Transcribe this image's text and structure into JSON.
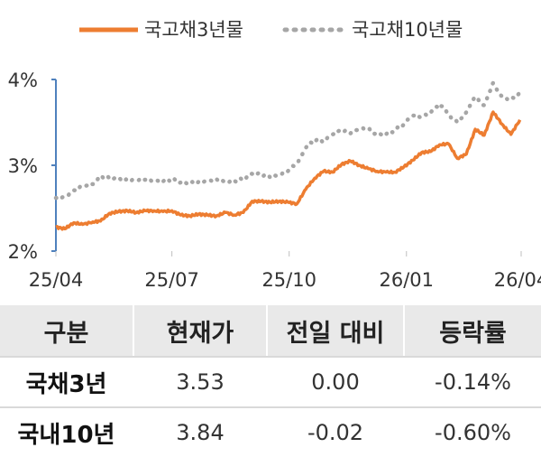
{
  "chart_data": {
    "type": "line",
    "legend_position": "top",
    "grid": false,
    "y_axis": {
      "ticks": [
        "2%",
        "3%",
        "4%"
      ],
      "ylim": [
        2.0,
        4.0
      ],
      "unit": "%"
    },
    "x_axis": {
      "ticks": [
        "25/04",
        "25/07",
        "25/10",
        "26/01",
        "26/04"
      ]
    },
    "series": [
      {
        "name": "국고채3년물",
        "color": "#ed7d31",
        "style": "solid",
        "x": [
          "2025-04-01",
          "2025-04-08",
          "2025-04-15",
          "2025-04-22",
          "2025-04-30",
          "2025-05-06",
          "2025-05-13",
          "2025-05-20",
          "2025-05-27",
          "2025-06-03",
          "2025-06-10",
          "2025-06-17",
          "2025-06-24",
          "2025-07-01",
          "2025-07-08",
          "2025-07-15",
          "2025-07-22",
          "2025-07-29",
          "2025-08-05",
          "2025-08-12",
          "2025-08-19",
          "2025-08-26",
          "2025-09-02",
          "2025-09-09",
          "2025-09-16",
          "2025-09-23",
          "2025-09-30",
          "2025-10-07",
          "2025-10-14",
          "2025-10-21",
          "2025-10-28",
          "2025-11-04",
          "2025-11-11",
          "2025-11-18",
          "2025-11-25",
          "2025-12-02",
          "2025-12-09",
          "2025-12-16",
          "2025-12-23",
          "2025-12-30",
          "2026-01-06",
          "2026-01-13",
          "2026-01-20",
          "2026-01-27",
          "2026-02-03",
          "2026-02-10",
          "2026-02-17",
          "2026-02-24",
          "2026-03-03",
          "2026-03-10",
          "2026-03-17",
          "2026-03-24",
          "2026-03-31"
        ],
        "values": [
          2.28,
          2.26,
          2.33,
          2.31,
          2.34,
          2.35,
          2.44,
          2.46,
          2.47,
          2.45,
          2.47,
          2.47,
          2.46,
          2.47,
          2.42,
          2.41,
          2.43,
          2.42,
          2.41,
          2.45,
          2.42,
          2.45,
          2.58,
          2.58,
          2.57,
          2.58,
          2.57,
          2.55,
          2.72,
          2.85,
          2.93,
          2.92,
          3.01,
          3.05,
          3.0,
          2.96,
          2.93,
          2.92,
          2.92,
          2.98,
          3.06,
          3.15,
          3.16,
          3.24,
          3.25,
          3.08,
          3.13,
          3.42,
          3.35,
          3.62,
          3.48,
          3.36,
          3.53
        ]
      },
      {
        "name": "국고채10년물",
        "color": "#a6a6a6",
        "style": "dotted",
        "x": [
          "2025-04-01",
          "2025-04-08",
          "2025-04-15",
          "2025-04-22",
          "2025-04-30",
          "2025-05-06",
          "2025-05-13",
          "2025-05-20",
          "2025-05-27",
          "2025-06-03",
          "2025-06-10",
          "2025-06-17",
          "2025-06-24",
          "2025-07-01",
          "2025-07-08",
          "2025-07-15",
          "2025-07-22",
          "2025-07-29",
          "2025-08-05",
          "2025-08-12",
          "2025-08-19",
          "2025-08-26",
          "2025-09-02",
          "2025-09-09",
          "2025-09-16",
          "2025-09-23",
          "2025-09-30",
          "2025-10-07",
          "2025-10-14",
          "2025-10-21",
          "2025-10-28",
          "2025-11-04",
          "2025-11-11",
          "2025-11-18",
          "2025-11-25",
          "2025-12-02",
          "2025-12-09",
          "2025-12-16",
          "2025-12-23",
          "2025-12-30",
          "2026-01-06",
          "2026-01-13",
          "2026-01-20",
          "2026-01-27",
          "2026-02-03",
          "2026-02-10",
          "2026-02-17",
          "2026-02-24",
          "2026-03-03",
          "2026-03-10",
          "2026-03-17",
          "2026-03-24",
          "2026-03-31"
        ],
        "values": [
          2.62,
          2.63,
          2.71,
          2.76,
          2.78,
          2.87,
          2.85,
          2.85,
          2.82,
          2.83,
          2.83,
          2.82,
          2.81,
          2.84,
          2.8,
          2.79,
          2.81,
          2.82,
          2.84,
          2.8,
          2.82,
          2.84,
          2.9,
          2.9,
          2.86,
          2.88,
          2.93,
          3.02,
          3.2,
          3.3,
          3.28,
          3.36,
          3.41,
          3.37,
          3.43,
          3.42,
          3.36,
          3.36,
          3.41,
          3.48,
          3.58,
          3.56,
          3.61,
          3.72,
          3.59,
          3.5,
          3.62,
          3.8,
          3.7,
          3.96,
          3.8,
          3.77,
          3.84
        ]
      }
    ]
  },
  "table": {
    "headers": [
      "구분",
      "현재가",
      "전일 대비",
      "등락률"
    ],
    "rows": [
      {
        "name": "국채3년",
        "price": "3.53",
        "change": "0.00",
        "rate": "-0.14%"
      },
      {
        "name": "국내10년",
        "price": "3.84",
        "change": "-0.02",
        "rate": "-0.60%"
      }
    ]
  }
}
